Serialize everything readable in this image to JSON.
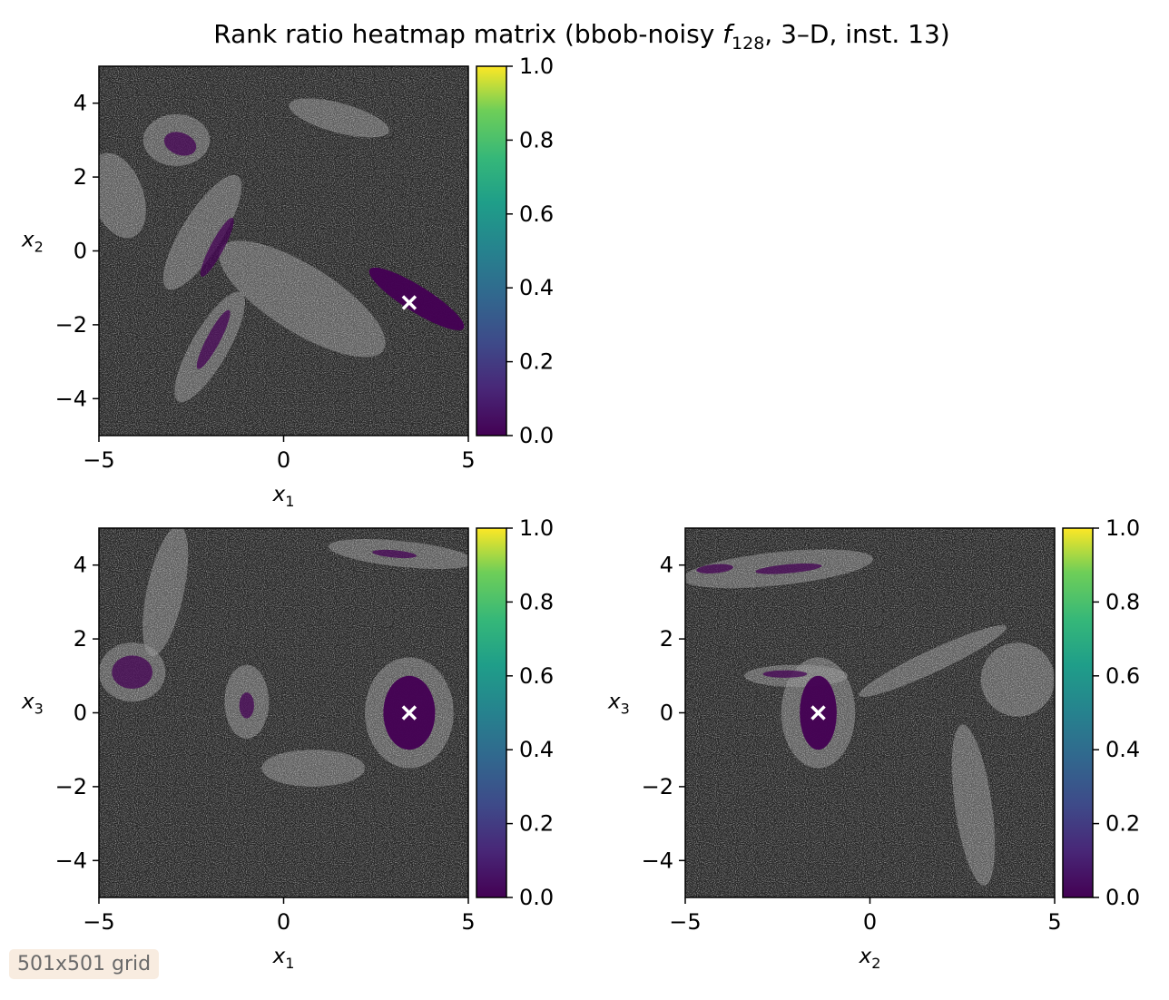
{
  "chart_data": [
    {
      "type": "heatmap",
      "title": "Rank ratio heatmap matrix (bbob-noisy f128, 3–D, inst. 13)",
      "title_parts": {
        "prefix": "Rank ratio heatmap matrix (bbob-noisy ",
        "func": "f",
        "func_sub": "128",
        "suffix": ", 3–D, inst. 13)"
      },
      "panel": "x1-x2",
      "xlabel": "x",
      "xlabel_sub": "1",
      "ylabel": "x",
      "ylabel_sub": "2",
      "xlim": [
        -5,
        5
      ],
      "ylim": [
        -5,
        5
      ],
      "xticks": [
        -5,
        0,
        5
      ],
      "yticks": [
        -4,
        -2,
        0,
        2,
        4
      ],
      "colorbar": {
        "cmap": "viridis",
        "range": [
          0.0,
          1.0
        ],
        "ticks": [
          0.0,
          0.2,
          0.4,
          0.6,
          0.8,
          1.0
        ]
      },
      "optimum": [
        3.4,
        -1.4
      ],
      "low_rank_regions": [
        {
          "center": [
            3.6,
            -1.3
          ],
          "extent": [
            1.5,
            0.35
          ],
          "angle_deg": -32
        },
        {
          "center": [
            -1.8,
            0.1
          ],
          "extent": [
            0.9,
            0.18
          ],
          "angle_deg": 62
        },
        {
          "center": [
            -1.9,
            -2.4
          ],
          "extent": [
            0.9,
            0.18
          ],
          "angle_deg": 62
        },
        {
          "center": [
            -2.8,
            2.9
          ],
          "extent": [
            0.45,
            0.3
          ],
          "angle_deg": -20
        }
      ]
    },
    {
      "type": "heatmap",
      "panel": "x1-x3",
      "xlabel": "x",
      "xlabel_sub": "1",
      "ylabel": "x",
      "ylabel_sub": "3",
      "xlim": [
        -5,
        5
      ],
      "ylim": [
        -5,
        5
      ],
      "xticks": [
        -5,
        0,
        5
      ],
      "yticks": [
        -4,
        -2,
        0,
        2,
        4
      ],
      "colorbar": {
        "cmap": "viridis",
        "range": [
          0.0,
          1.0
        ],
        "ticks": [
          0.0,
          0.2,
          0.4,
          0.6,
          0.8,
          1.0
        ]
      },
      "optimum": [
        3.4,
        0.0
      ],
      "low_rank_regions": [
        {
          "center": [
            3.4,
            0.0
          ],
          "extent": [
            0.7,
            1.0
          ],
          "angle_deg": 0
        },
        {
          "center": [
            -4.1,
            1.1
          ],
          "extent": [
            0.55,
            0.45
          ],
          "angle_deg": 0
        },
        {
          "center": [
            -1.0,
            0.2
          ],
          "extent": [
            0.2,
            0.35
          ],
          "angle_deg": 0
        },
        {
          "center": [
            3.0,
            4.3
          ],
          "extent": [
            0.6,
            0.1
          ],
          "angle_deg": -5
        }
      ]
    },
    {
      "type": "heatmap",
      "panel": "x2-x3",
      "xlabel": "x",
      "xlabel_sub": "2",
      "ylabel": "x",
      "ylabel_sub": "3",
      "xlim": [
        -5,
        5
      ],
      "ylim": [
        -5,
        5
      ],
      "xticks": [
        -5,
        0,
        5
      ],
      "yticks": [
        -4,
        -2,
        0,
        2,
        4
      ],
      "colorbar": {
        "cmap": "viridis",
        "range": [
          0.0,
          1.0
        ],
        "ticks": [
          0.0,
          0.2,
          0.4,
          0.6,
          0.8,
          1.0
        ]
      },
      "optimum": [
        -1.4,
        0.0
      ],
      "low_rank_regions": [
        {
          "center": [
            -1.4,
            0.0
          ],
          "extent": [
            0.5,
            1.0
          ],
          "angle_deg": 0
        },
        {
          "center": [
            -2.2,
            3.9
          ],
          "extent": [
            0.9,
            0.12
          ],
          "angle_deg": 5
        },
        {
          "center": [
            -4.2,
            3.9
          ],
          "extent": [
            0.5,
            0.12
          ],
          "angle_deg": 5
        },
        {
          "center": [
            -2.3,
            1.05
          ],
          "extent": [
            0.6,
            0.1
          ],
          "angle_deg": 0
        }
      ]
    }
  ],
  "annotation": {
    "text": "501x501 grid"
  }
}
